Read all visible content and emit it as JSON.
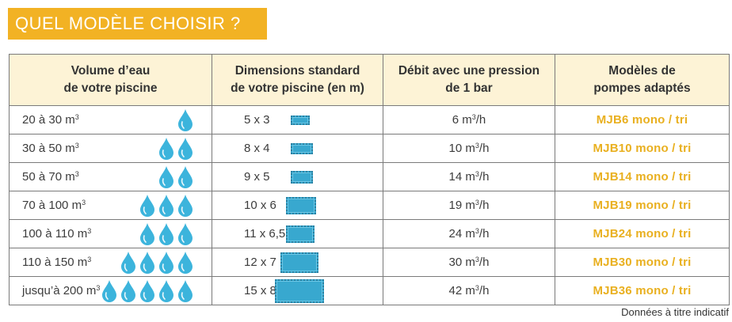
{
  "title": "QUEL MODÈLE CHOISIR ?",
  "headers": {
    "volume_l1": "Volume d’eau",
    "volume_l2": "de votre piscine",
    "dimensions_l1": "Dimensions standard",
    "dimensions_l2": "de votre piscine (en m)",
    "flow_l1": "Débit avec une pression",
    "flow_l2": "de 1 bar",
    "models_l1": "Modèles de",
    "models_l2": "pompes adaptés"
  },
  "unit_m3": "m",
  "unit_exp": "3",
  "unit_flow_suffix": "/h",
  "rows": [
    {
      "volume": "20 à 30 ",
      "drops": 1,
      "dimensions": "5 x 3",
      "flow": "6 ",
      "model": "MJB6 mono / tri"
    },
    {
      "volume": "30 à 50 ",
      "drops": 2,
      "dimensions": "8 x 4",
      "flow": "10 ",
      "model": "MJB10 mono / tri"
    },
    {
      "volume": "50 à 70 ",
      "drops": 2,
      "dimensions": "9 x 5",
      "flow": "14 ",
      "model": "MJB14 mono / tri"
    },
    {
      "volume": "70 à 100 ",
      "drops": 3,
      "dimensions": "10 x 6",
      "flow": "19 ",
      "model": "MJB19 mono / tri"
    },
    {
      "volume": "100 à 110 ",
      "drops": 3,
      "dimensions": "11 x 6,5",
      "flow": "24 ",
      "model": "MJB24 mono / tri"
    },
    {
      "volume": "110 à 150 ",
      "drops": 4,
      "dimensions": "12 x 7",
      "flow": "30 ",
      "model": "MJB30 mono / tri"
    },
    {
      "volume": "jusqu’à 200 ",
      "drops": 5,
      "dimensions": "15 x 8",
      "flow": "42 ",
      "model": "MJB36 mono / tri"
    }
  ],
  "note": "Données à titre indicatif",
  "colors": {
    "accent": "#f2b224",
    "header_bg": "#fdf3d6",
    "drop": "#3cb4dc",
    "pool": "#38a8cf",
    "model_text": "#e9b020"
  }
}
